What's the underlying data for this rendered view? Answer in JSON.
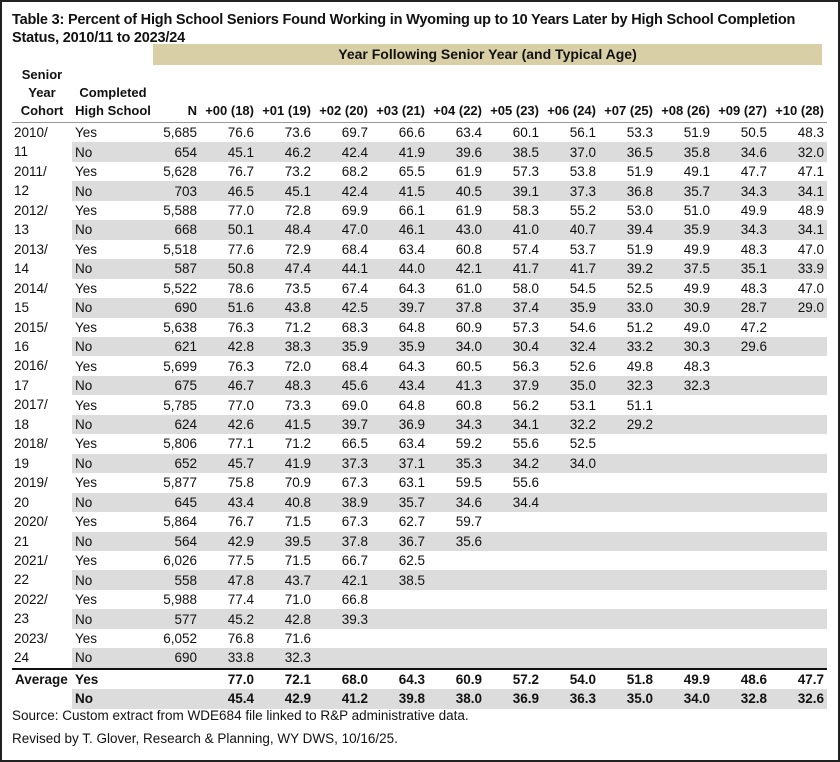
{
  "title": "Table 3: Percent of High School Seniors Found Working in Wyoming up to 10 Years Later by High School Completion Status, 2010/11 to 2023/24",
  "band_label": "Year Following Senior Year (and Typical Age)",
  "headers": {
    "cohort": "Senior Year Cohort",
    "completed": "Completed High School",
    "n": "N",
    "years": [
      "+00 (18)",
      "+01 (19)",
      "+02 (20)",
      "+03 (21)",
      "+04 (22)",
      "+05 (23)",
      "+06 (24)",
      "+07 (25)",
      "+08 (26)",
      "+09 (27)",
      "+10 (28)"
    ]
  },
  "rows": [
    {
      "cohort": [
        "2010/",
        "11"
      ],
      "yes": {
        "label": "Yes",
        "n": "5,685",
        "values": [
          "76.6",
          "73.6",
          "69.7",
          "66.6",
          "63.4",
          "60.1",
          "56.1",
          "53.3",
          "51.9",
          "50.5",
          "48.3"
        ]
      },
      "no": {
        "label": "No",
        "n": "654",
        "values": [
          "45.1",
          "46.2",
          "42.4",
          "41.9",
          "39.6",
          "38.5",
          "37.0",
          "36.5",
          "35.8",
          "34.6",
          "32.0"
        ]
      }
    },
    {
      "cohort": [
        "2011/",
        "12"
      ],
      "yes": {
        "label": "Yes",
        "n": "5,628",
        "values": [
          "76.7",
          "73.2",
          "68.2",
          "65.5",
          "61.9",
          "57.3",
          "53.8",
          "51.9",
          "49.1",
          "47.7",
          "47.1"
        ]
      },
      "no": {
        "label": "No",
        "n": "703",
        "values": [
          "46.5",
          "45.1",
          "42.4",
          "41.5",
          "40.5",
          "39.1",
          "37.3",
          "36.8",
          "35.7",
          "34.3",
          "34.1"
        ]
      }
    },
    {
      "cohort": [
        "2012/",
        "13"
      ],
      "yes": {
        "label": "Yes",
        "n": "5,588",
        "values": [
          "77.0",
          "72.8",
          "69.9",
          "66.1",
          "61.9",
          "58.3",
          "55.2",
          "53.0",
          "51.0",
          "49.9",
          "48.9"
        ]
      },
      "no": {
        "label": "No",
        "n": "668",
        "values": [
          "50.1",
          "48.4",
          "47.0",
          "46.1",
          "43.0",
          "41.0",
          "40.7",
          "39.4",
          "35.9",
          "34.3",
          "34.1"
        ]
      }
    },
    {
      "cohort": [
        "2013/",
        "14"
      ],
      "yes": {
        "label": "Yes",
        "n": "5,518",
        "values": [
          "77.6",
          "72.9",
          "68.4",
          "63.4",
          "60.8",
          "57.4",
          "53.7",
          "51.9",
          "49.9",
          "48.3",
          "47.0"
        ]
      },
      "no": {
        "label": "No",
        "n": "587",
        "values": [
          "50.8",
          "47.4",
          "44.1",
          "44.0",
          "42.1",
          "41.7",
          "41.7",
          "39.2",
          "37.5",
          "35.1",
          "33.9"
        ]
      }
    },
    {
      "cohort": [
        "2014/",
        "15"
      ],
      "yes": {
        "label": "Yes",
        "n": "5,522",
        "values": [
          "78.6",
          "73.5",
          "67.4",
          "64.3",
          "61.0",
          "58.0",
          "54.5",
          "52.5",
          "49.9",
          "48.3",
          "47.0"
        ]
      },
      "no": {
        "label": "No",
        "n": "690",
        "values": [
          "51.6",
          "43.8",
          "42.5",
          "39.7",
          "37.8",
          "37.4",
          "35.9",
          "33.0",
          "30.9",
          "28.7",
          "29.0"
        ]
      }
    },
    {
      "cohort": [
        "2015/",
        "16"
      ],
      "yes": {
        "label": "Yes",
        "n": "5,638",
        "values": [
          "76.3",
          "71.2",
          "68.3",
          "64.8",
          "60.9",
          "57.3",
          "54.6",
          "51.2",
          "49.0",
          "47.2",
          ""
        ]
      },
      "no": {
        "label": "No",
        "n": "621",
        "values": [
          "42.8",
          "38.3",
          "35.9",
          "35.9",
          "34.0",
          "30.4",
          "32.4",
          "33.2",
          "30.3",
          "29.6",
          ""
        ]
      }
    },
    {
      "cohort": [
        "2016/",
        "17"
      ],
      "yes": {
        "label": "Yes",
        "n": "5,699",
        "values": [
          "76.3",
          "72.0",
          "68.4",
          "64.3",
          "60.5",
          "56.3",
          "52.6",
          "49.8",
          "48.3",
          "",
          ""
        ]
      },
      "no": {
        "label": "No",
        "n": "675",
        "values": [
          "46.7",
          "48.3",
          "45.6",
          "43.4",
          "41.3",
          "37.9",
          "35.0",
          "32.3",
          "32.3",
          "",
          ""
        ]
      }
    },
    {
      "cohort": [
        "2017/",
        "18"
      ],
      "yes": {
        "label": "Yes",
        "n": "5,785",
        "values": [
          "77.0",
          "73.3",
          "69.0",
          "64.8",
          "60.8",
          "56.2",
          "53.1",
          "51.1",
          "",
          "",
          ""
        ]
      },
      "no": {
        "label": "No",
        "n": "624",
        "values": [
          "42.6",
          "41.5",
          "39.7",
          "36.9",
          "34.3",
          "34.1",
          "32.2",
          "29.2",
          "",
          "",
          ""
        ]
      }
    },
    {
      "cohort": [
        "2018/",
        "19"
      ],
      "yes": {
        "label": "Yes",
        "n": "5,806",
        "values": [
          "77.1",
          "71.2",
          "66.5",
          "63.4",
          "59.2",
          "55.6",
          "52.5",
          "",
          "",
          "",
          ""
        ]
      },
      "no": {
        "label": "No",
        "n": "652",
        "values": [
          "45.7",
          "41.9",
          "37.3",
          "37.1",
          "35.3",
          "34.2",
          "34.0",
          "",
          "",
          "",
          ""
        ]
      }
    },
    {
      "cohort": [
        "2019/",
        "20"
      ],
      "yes": {
        "label": "Yes",
        "n": "5,877",
        "values": [
          "75.8",
          "70.9",
          "67.3",
          "63.1",
          "59.5",
          "55.6",
          "",
          "",
          "",
          "",
          ""
        ]
      },
      "no": {
        "label": "No",
        "n": "645",
        "values": [
          "43.4",
          "40.8",
          "38.9",
          "35.7",
          "34.6",
          "34.4",
          "",
          "",
          "",
          "",
          ""
        ]
      }
    },
    {
      "cohort": [
        "2020/",
        "21"
      ],
      "yes": {
        "label": "Yes",
        "n": "5,864",
        "values": [
          "76.7",
          "71.5",
          "67.3",
          "62.7",
          "59.7",
          "",
          "",
          "",
          "",
          "",
          ""
        ]
      },
      "no": {
        "label": "No",
        "n": "564",
        "values": [
          "42.9",
          "39.5",
          "37.8",
          "36.7",
          "35.6",
          "",
          "",
          "",
          "",
          "",
          ""
        ]
      }
    },
    {
      "cohort": [
        "2021/",
        "22"
      ],
      "yes": {
        "label": "Yes",
        "n": "6,026",
        "values": [
          "77.5",
          "71.5",
          "66.7",
          "62.5",
          "",
          "",
          "",
          "",
          "",
          "",
          ""
        ]
      },
      "no": {
        "label": "No",
        "n": "558",
        "values": [
          "47.8",
          "43.7",
          "42.1",
          "38.5",
          "",
          "",
          "",
          "",
          "",
          "",
          ""
        ]
      }
    },
    {
      "cohort": [
        "2022/",
        "23"
      ],
      "yes": {
        "label": "Yes",
        "n": "5,988",
        "values": [
          "77.4",
          "71.0",
          "66.8",
          "",
          "",
          "",
          "",
          "",
          "",
          "",
          ""
        ]
      },
      "no": {
        "label": "No",
        "n": "577",
        "values": [
          "45.2",
          "42.8",
          "39.3",
          "",
          "",
          "",
          "",
          "",
          "",
          "",
          ""
        ]
      }
    },
    {
      "cohort": [
        "2023/",
        "24"
      ],
      "yes": {
        "label": "Yes",
        "n": "6,052",
        "values": [
          "76.8",
          "71.6",
          "",
          "",
          "",
          "",
          "",
          "",
          "",
          "",
          ""
        ]
      },
      "no": {
        "label": "No",
        "n": "690",
        "values": [
          "33.8",
          "32.3",
          "",
          "",
          "",
          "",
          "",
          "",
          "",
          "",
          ""
        ]
      }
    }
  ],
  "average": {
    "label": "Average",
    "yes": {
      "label": "Yes",
      "values": [
        "77.0",
        "72.1",
        "68.0",
        "64.3",
        "60.9",
        "57.2",
        "54.0",
        "51.8",
        "49.9",
        "48.6",
        "47.7"
      ]
    },
    "no": {
      "label": "No",
      "values": [
        "45.4",
        "42.9",
        "41.2",
        "39.8",
        "38.0",
        "36.9",
        "36.3",
        "35.0",
        "34.0",
        "32.8",
        "32.6"
      ]
    }
  },
  "footer": {
    "source": "Source: Custom extract from WDE684 file linked to R&P administrative data.",
    "revised": "Revised by T. Glover, Research & Planning, WY DWS, 10/16/25."
  },
  "colors": {
    "band": "#d9cfa6",
    "row_shade": "#dcdcdc"
  }
}
